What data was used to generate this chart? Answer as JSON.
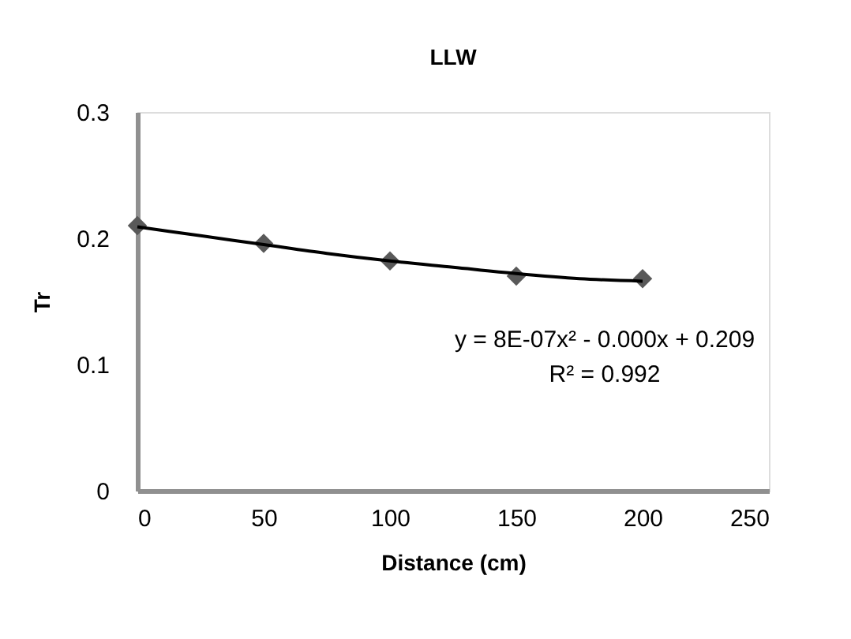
{
  "chart_data": {
    "type": "scatter",
    "title": "LLW",
    "xlabel": "Distance (cm)",
    "ylabel": "Tr",
    "xlim": [
      0,
      250
    ],
    "xticks": [
      0,
      50,
      100,
      150,
      200,
      250
    ],
    "ylim": [
      0,
      0.3
    ],
    "yticks": [
      0,
      0.1,
      0.2,
      0.3
    ],
    "grid": false,
    "series": [
      {
        "color": "#595959",
        "marker": "diamond",
        "x": [
          0,
          50,
          100,
          150,
          200
        ],
        "values": [
          0.21,
          0.196,
          0.182,
          0.17,
          0.168
        ]
      },
      {
        "type": "line",
        "color": "#000000",
        "marker": "none",
        "x": [
          0,
          25,
          50,
          75,
          100,
          125,
          150,
          175,
          200
        ],
        "values": [
          0.209,
          0.202,
          0.195,
          0.188,
          0.182,
          0.177,
          0.172,
          0.168,
          0.166
        ]
      }
    ],
    "annotations": [
      "y = 8E-07x² - 0.000x + 0.209",
      "R² = 0.992"
    ]
  }
}
